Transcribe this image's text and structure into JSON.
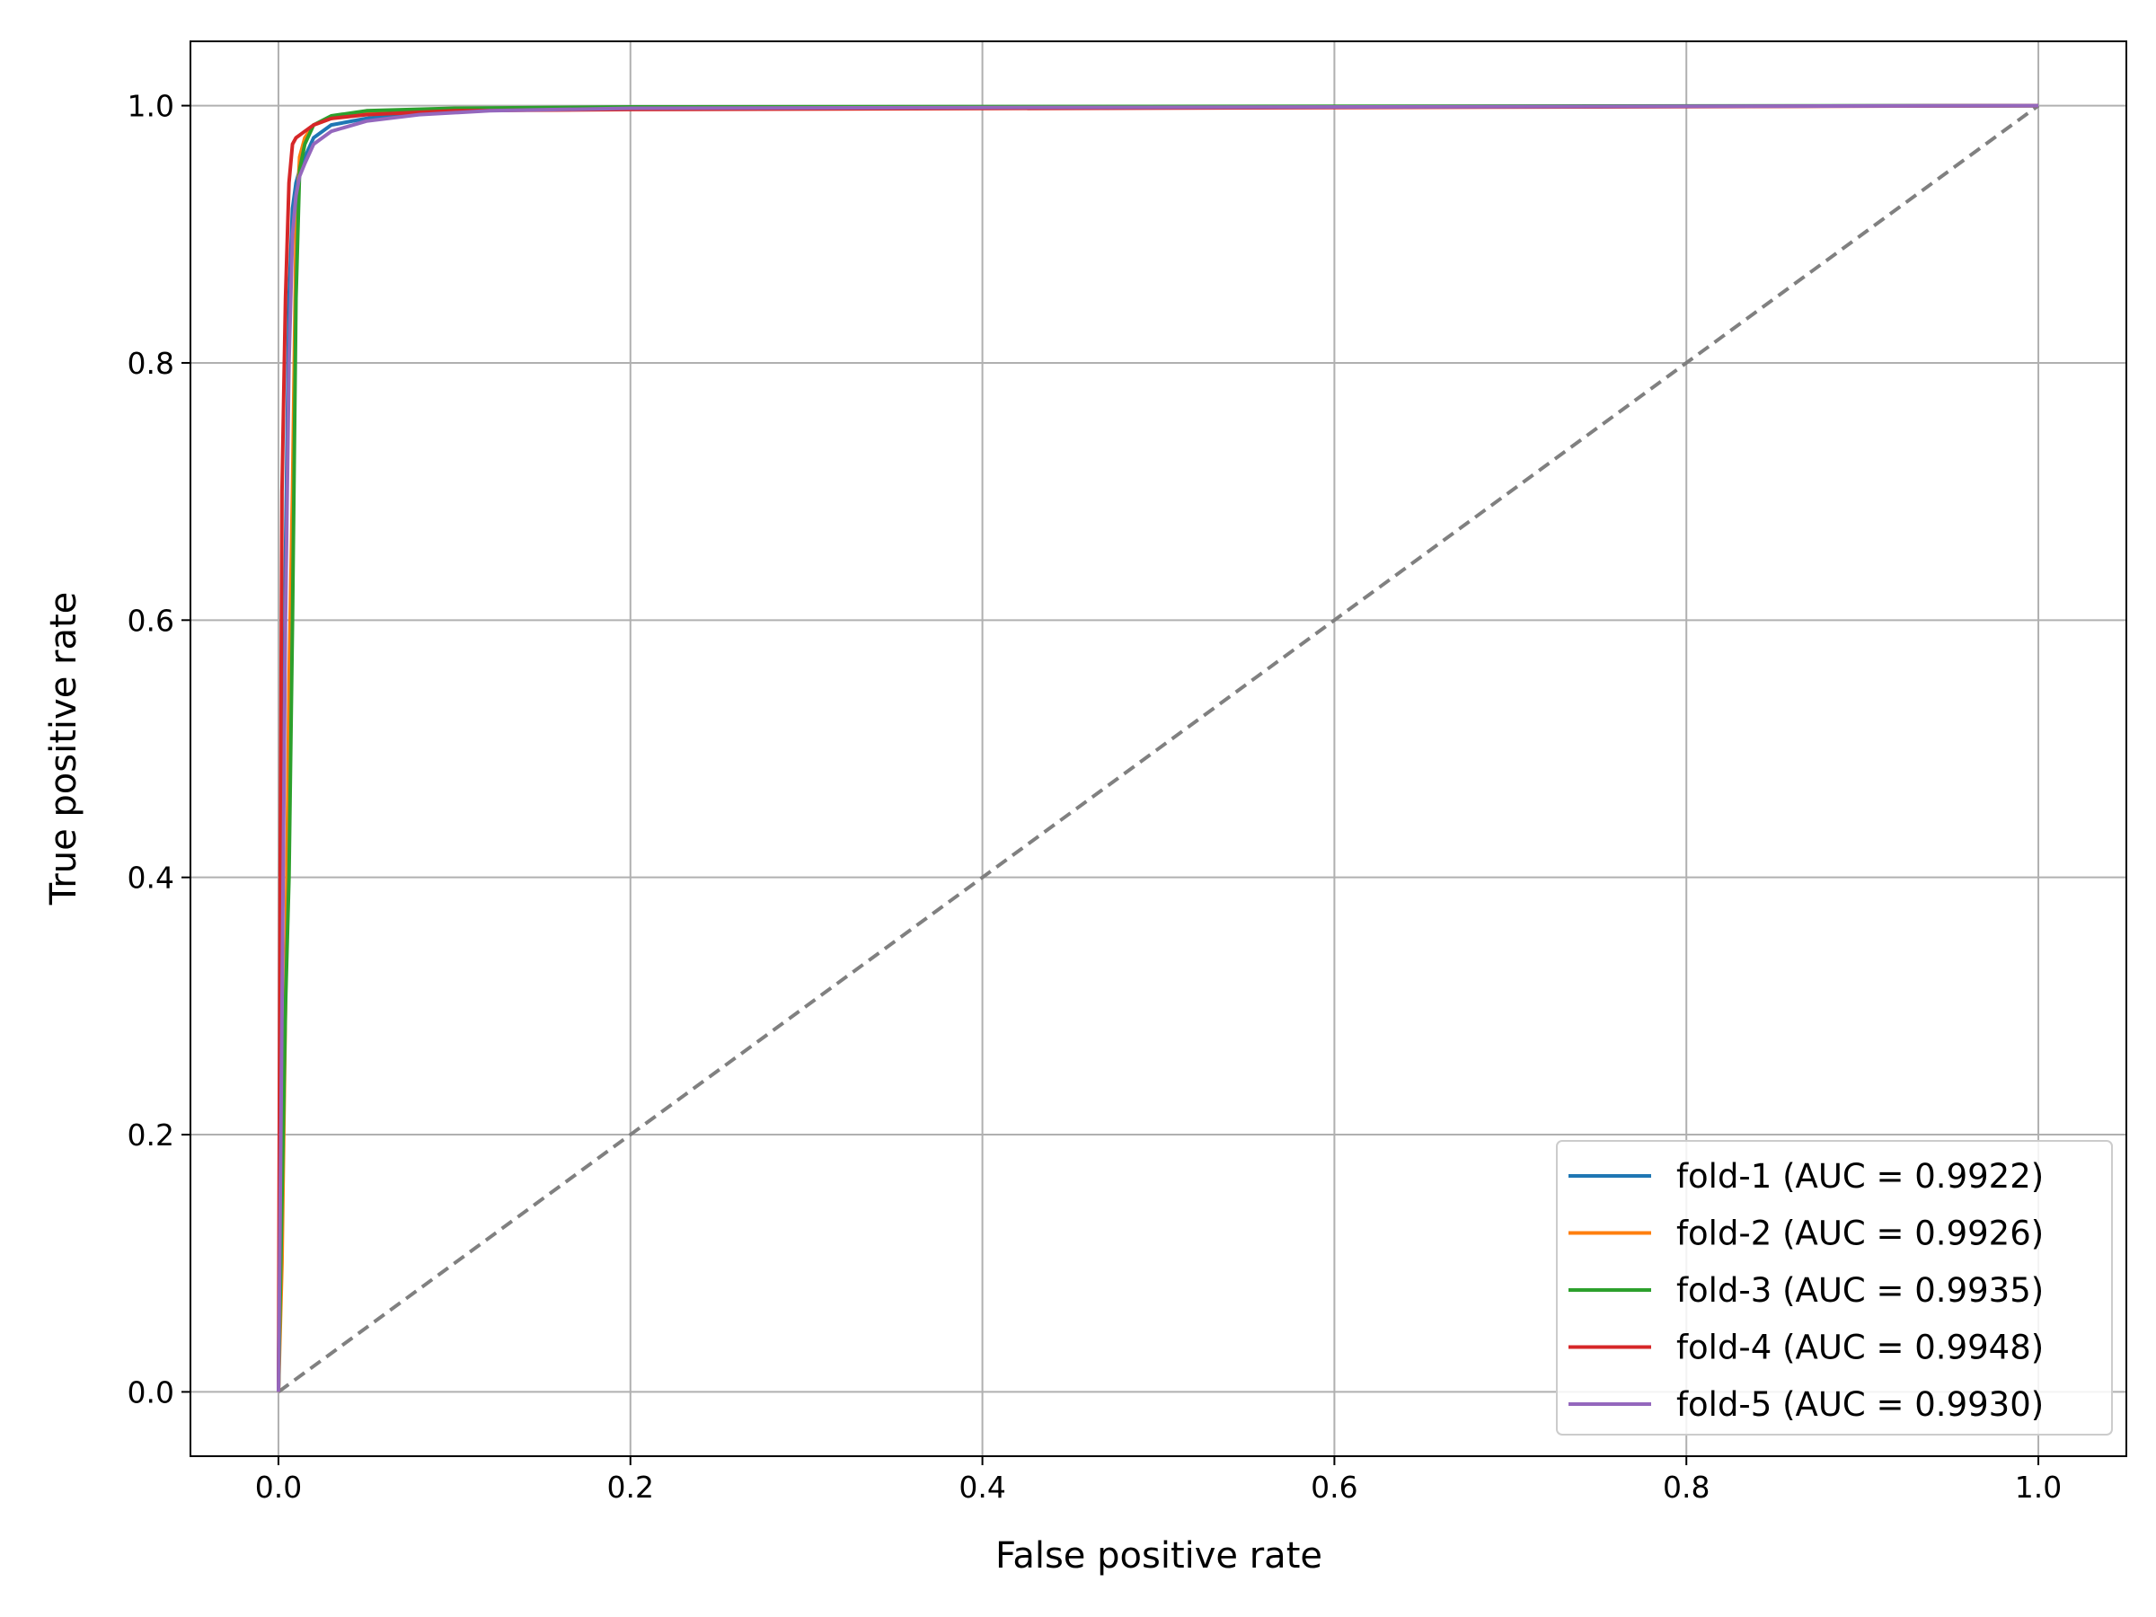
{
  "chart_data": {
    "type": "line",
    "title": "",
    "xlabel": "False positive rate",
    "ylabel": "True positive rate",
    "xlim": [
      -0.05,
      1.05
    ],
    "ylim": [
      -0.05,
      1.05
    ],
    "xticks": [
      0.0,
      0.2,
      0.4,
      0.6,
      0.8,
      1.0
    ],
    "yticks": [
      0.0,
      0.2,
      0.4,
      0.6,
      0.8,
      1.0
    ],
    "xtick_labels": [
      "0.0",
      "0.2",
      "0.4",
      "0.6",
      "0.8",
      "1.0"
    ],
    "ytick_labels": [
      "0.0",
      "0.2",
      "0.4",
      "0.6",
      "0.8",
      "1.0"
    ],
    "grid": true,
    "legend_position": "lower-right",
    "series": [
      {
        "name": "fold-1 (AUC = 0.9922)",
        "color": "#1f77b4",
        "x": [
          0.0,
          0.002,
          0.004,
          0.006,
          0.008,
          0.01,
          0.012,
          0.015,
          0.02,
          0.03,
          0.05,
          0.08,
          0.12,
          0.2,
          1.0
        ],
        "y": [
          0.0,
          0.35,
          0.65,
          0.85,
          0.92,
          0.94,
          0.95,
          0.96,
          0.975,
          0.985,
          0.99,
          0.995,
          0.997,
          0.998,
          1.0
        ]
      },
      {
        "name": "fold-2 (AUC = 0.9926)",
        "color": "#ff7f0e",
        "x": [
          0.0,
          0.002,
          0.004,
          0.006,
          0.008,
          0.01,
          0.012,
          0.015,
          0.02,
          0.03,
          0.05,
          0.1,
          0.2,
          1.0
        ],
        "y": [
          0.0,
          0.1,
          0.3,
          0.55,
          0.7,
          0.9,
          0.96,
          0.975,
          0.985,
          0.99,
          0.995,
          0.997,
          0.998,
          1.0
        ]
      },
      {
        "name": "fold-3 (AUC = 0.9935)",
        "color": "#2ca02c",
        "x": [
          0.0,
          0.002,
          0.004,
          0.006,
          0.008,
          0.01,
          0.012,
          0.015,
          0.02,
          0.03,
          0.05,
          0.1,
          0.2,
          1.0
        ],
        "y": [
          0.0,
          0.15,
          0.3,
          0.4,
          0.6,
          0.85,
          0.95,
          0.97,
          0.985,
          0.992,
          0.996,
          0.998,
          0.999,
          1.0
        ]
      },
      {
        "name": "fold-4 (AUC = 0.9948)",
        "color": "#d62728",
        "x": [
          0.0,
          0.001,
          0.002,
          0.004,
          0.006,
          0.008,
          0.01,
          0.015,
          0.02,
          0.03,
          0.05,
          0.1,
          0.2,
          1.0
        ],
        "y": [
          0.0,
          0.4,
          0.7,
          0.85,
          0.94,
          0.97,
          0.975,
          0.98,
          0.985,
          0.99,
          0.993,
          0.996,
          0.997,
          1.0
        ]
      },
      {
        "name": "fold-5 (AUC = 0.9930)",
        "color": "#9467bd",
        "x": [
          0.0,
          0.002,
          0.004,
          0.006,
          0.008,
          0.01,
          0.012,
          0.015,
          0.02,
          0.03,
          0.05,
          0.08,
          0.12,
          0.2,
          1.0
        ],
        "y": [
          0.0,
          0.3,
          0.6,
          0.8,
          0.9,
          0.93,
          0.945,
          0.955,
          0.97,
          0.98,
          0.988,
          0.993,
          0.996,
          0.998,
          1.0
        ]
      }
    ],
    "reference_line": {
      "x": [
        0.0,
        1.0
      ],
      "y": [
        0.0,
        1.0
      ],
      "color": "#808080",
      "style": "dashed"
    }
  }
}
